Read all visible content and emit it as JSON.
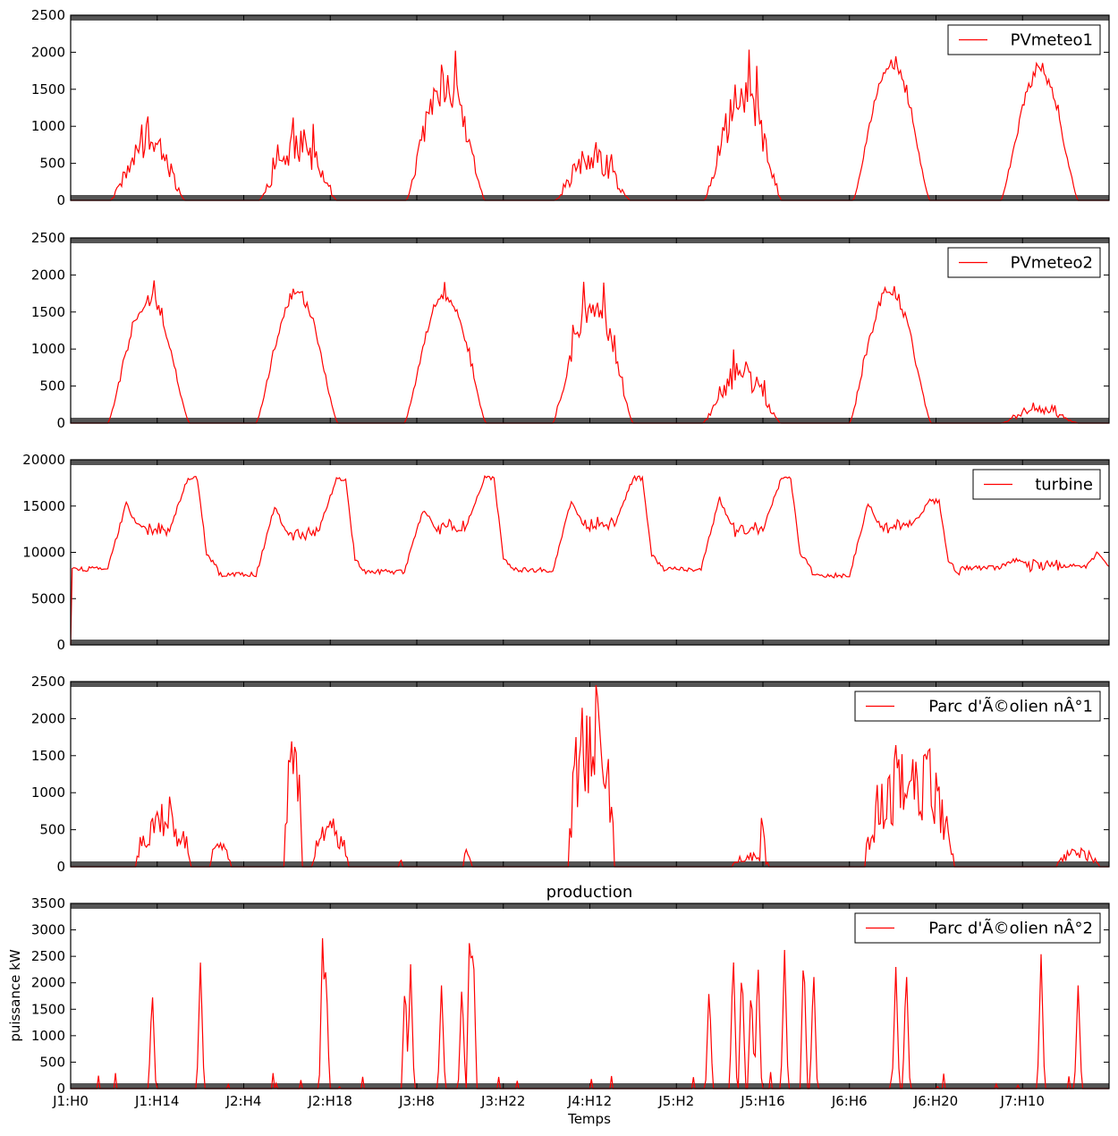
{
  "chart_data": {
    "type": "line",
    "title": "production",
    "xlabel": "Temps",
    "ylabel": "puissance kW",
    "x_range": [
      0,
      168
    ],
    "x_ticks": [
      {
        "label": "J1:H0",
        "value": 0
      },
      {
        "label": "J1:H14",
        "value": 14
      },
      {
        "label": "J2:H4",
        "value": 28
      },
      {
        "label": "J2:H18",
        "value": 42
      },
      {
        "label": "J3:H8",
        "value": 56
      },
      {
        "label": "J3:H22",
        "value": 70
      },
      {
        "label": "J4:H12",
        "value": 84
      },
      {
        "label": "J5:H2",
        "value": 98
      },
      {
        "label": "J5:H16",
        "value": 112
      },
      {
        "label": "J6:H6",
        "value": 126
      },
      {
        "label": "J6:H20",
        "value": 140
      },
      {
        "label": "J7:H10",
        "value": 154
      }
    ],
    "line_color": "#ff0000",
    "legend_position": "top-right",
    "panels": [
      {
        "name": "PVmeteo1",
        "ylim": [
          0,
          2500
        ],
        "yticks": [
          0,
          500,
          1000,
          1500,
          2000,
          2500
        ],
        "series": [
          {
            "day": 0,
            "start": 6.5,
            "end": 18.5,
            "peak": 1080,
            "noise": 0.55
          },
          {
            "day": 1,
            "start": 6.5,
            "end": 19,
            "peak": 1000,
            "noise": 0.55
          },
          {
            "day": 2,
            "start": 6.3,
            "end": 19,
            "peak": 1900,
            "noise": 0.35
          },
          {
            "day": 3,
            "start": 6.4,
            "end": 18.5,
            "peak": 800,
            "noise": 0.6
          },
          {
            "day": 4,
            "start": 6.5,
            "end": 19,
            "peak": 1700,
            "noise": 0.45
          },
          {
            "day": 5,
            "start": 6.6,
            "end": 19,
            "peak": 1920,
            "noise": 0.08
          },
          {
            "day": 6,
            "start": 6.5,
            "end": 19,
            "peak": 1820,
            "noise": 0.12
          }
        ]
      },
      {
        "name": "PVmeteo2",
        "ylim": [
          0,
          2500
        ],
        "yticks": [
          0,
          500,
          1000,
          1500,
          2000,
          2500
        ],
        "series": [
          {
            "day": 0,
            "start": 6.0,
            "end": 19.2,
            "peak": 1800,
            "noise": 0.15
          },
          {
            "day": 1,
            "start": 6.0,
            "end": 19.2,
            "peak": 1870,
            "noise": 0.12
          },
          {
            "day": 2,
            "start": 6.0,
            "end": 19.2,
            "peak": 1820,
            "noise": 0.1
          },
          {
            "day": 3,
            "start": 6.0,
            "end": 19.0,
            "peak": 1800,
            "noise": 0.25
          },
          {
            "day": 4,
            "start": 6.3,
            "end": 18.8,
            "peak": 850,
            "noise": 0.5
          },
          {
            "day": 5,
            "start": 6.0,
            "end": 19.2,
            "peak": 1900,
            "noise": 0.12
          },
          {
            "day": 6,
            "start": 6.5,
            "end": 19.0,
            "peak": 230,
            "noise": 0.6
          }
        ]
      },
      {
        "name": "turbine",
        "ylim": [
          0,
          20000
        ],
        "yticks": [
          0,
          5000,
          10000,
          15000,
          20000
        ],
        "series": [
          {
            "day": 0,
            "night": 8200,
            "morning": 15300,
            "mid": 12500,
            "evening": 18000
          },
          {
            "day": 1,
            "night": 7600,
            "morning": 14900,
            "mid": 12100,
            "evening": 18000
          },
          {
            "day": 2,
            "night": 7900,
            "morning": 14600,
            "mid": 12800,
            "evening": 18000
          },
          {
            "day": 3,
            "night": 8100,
            "morning": 15500,
            "mid": 13000,
            "evening": 18000
          },
          {
            "day": 4,
            "night": 8200,
            "morning": 15800,
            "mid": 12500,
            "evening": 18000
          },
          {
            "day": 5,
            "night": 7500,
            "morning": 15300,
            "mid": 12800,
            "evening": 15500
          },
          {
            "day": 6,
            "night": 8300,
            "morning": 9200,
            "mid": 8600,
            "evening": 8500
          }
        ]
      },
      {
        "name": "Parc d'Ã©olien nÂ°1",
        "ylim": [
          0,
          2500
        ],
        "yticks": [
          0,
          500,
          1000,
          1500,
          2000,
          2500
        ],
        "series": [
          {
            "start": 10.5,
            "end": 19.5,
            "level": 750
          },
          {
            "start": 22.5,
            "end": 26,
            "level": 300
          },
          {
            "start": 34.5,
            "end": 37.5,
            "level": 1500
          },
          {
            "start": 39,
            "end": 45,
            "level": 500
          },
          {
            "start": 53,
            "end": 53.6,
            "level": 150
          },
          {
            "start": 63.5,
            "end": 65,
            "level": 200
          },
          {
            "start": 80.5,
            "end": 88,
            "level": 2000
          },
          {
            "start": 107,
            "end": 113,
            "level": 150
          },
          {
            "start": 111.5,
            "end": 112.3,
            "level": 750
          },
          {
            "start": 128.5,
            "end": 143,
            "level": 1400
          },
          {
            "start": 159.5,
            "end": 166.5,
            "level": 200
          }
        ]
      },
      {
        "name": "Parc d'Ã©olien nÂ°2",
        "ylim": [
          0,
          3500
        ],
        "yticks": [
          0,
          500,
          1000,
          1500,
          2000,
          2500,
          3000,
          3500
        ],
        "series": [
          {
            "center": 13.2,
            "height": 1880
          },
          {
            "center": 21.0,
            "height": 2380
          },
          {
            "center": 40.8,
            "height": 3100
          },
          {
            "center": 41.3,
            "height": 2400
          },
          {
            "center": 54.1,
            "height": 2100
          },
          {
            "center": 55.0,
            "height": 2350
          },
          {
            "center": 60.0,
            "height": 1950
          },
          {
            "center": 63.3,
            "height": 2000
          },
          {
            "center": 64.6,
            "height": 3300
          },
          {
            "center": 65.1,
            "height": 3000
          },
          {
            "center": 103.3,
            "height": 1950
          },
          {
            "center": 107.2,
            "height": 2600
          },
          {
            "center": 108.6,
            "height": 2400
          },
          {
            "center": 110.1,
            "height": 2000
          },
          {
            "center": 111.2,
            "height": 2450
          },
          {
            "center": 115.5,
            "height": 2620
          },
          {
            "center": 118.6,
            "height": 2680
          },
          {
            "center": 120.2,
            "height": 2300
          },
          {
            "center": 133.5,
            "height": 2300
          },
          {
            "center": 135.2,
            "height": 2300
          },
          {
            "center": 157.0,
            "height": 2540
          },
          {
            "center": 163.0,
            "height": 1950
          }
        ]
      }
    ]
  }
}
